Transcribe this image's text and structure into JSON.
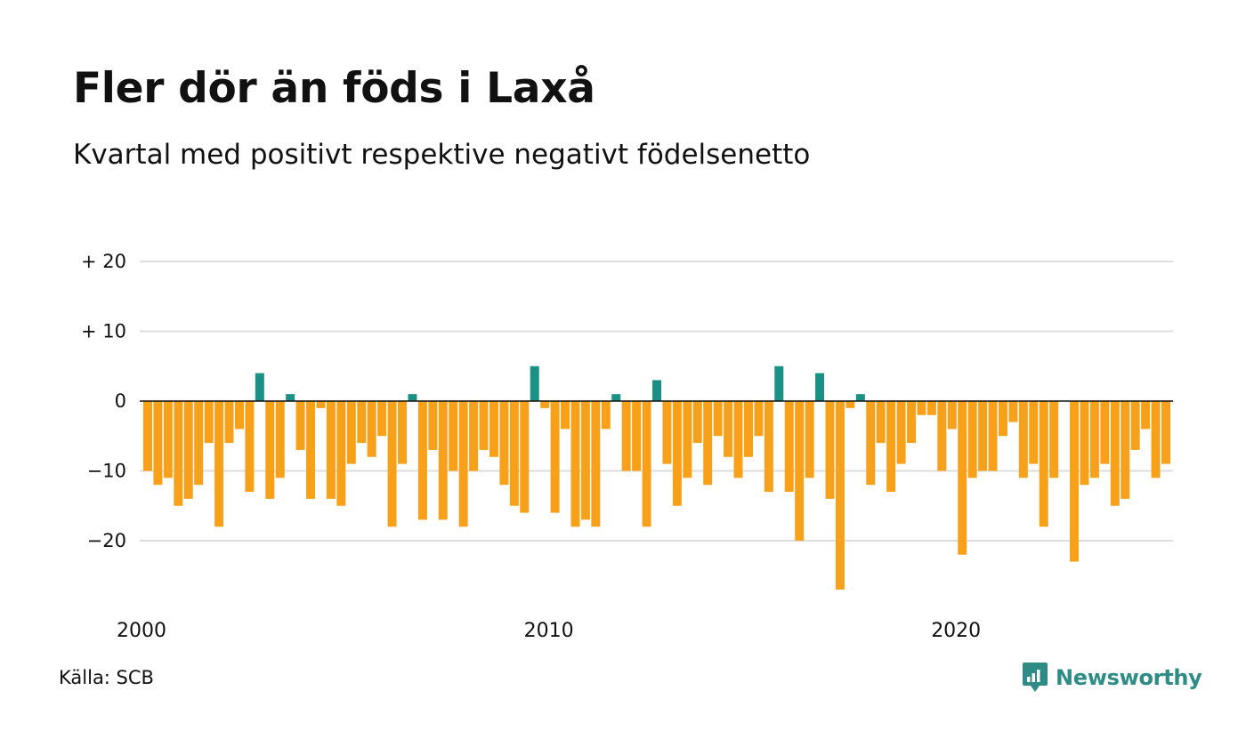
{
  "title": "Fler dör än föds i Laxå",
  "subtitle": "Kvartal med positivt respektive negativt födelsenetto",
  "source": "Källa: SCB",
  "logo_text": "Newsworthy",
  "colors": {
    "positive": "#1a9184",
    "negative": "#f7a11a",
    "grid": "#dddddd",
    "zero": "#111111",
    "logo": "#2e8b85"
  },
  "chart_data": {
    "type": "bar",
    "x_start": "2000 Q1",
    "x_ticks": [
      {
        "label": "2000",
        "index": 0
      },
      {
        "label": "2010",
        "index": 40
      },
      {
        "label": "2020",
        "index": 80
      }
    ],
    "y_ticks": [
      {
        "value": 20,
        "label": "+ 20"
      },
      {
        "value": 10,
        "label": "+ 10"
      },
      {
        "value": 0,
        "label": "0"
      },
      {
        "value": -10,
        "label": "−10"
      },
      {
        "value": -20,
        "label": "−20"
      }
    ],
    "ylim": [
      -28,
      20
    ],
    "grid": true,
    "values": [
      -10,
      -12,
      -11,
      -15,
      -14,
      -12,
      -6,
      -18,
      -6,
      -4,
      -13,
      4,
      -14,
      -11,
      1,
      -7,
      -14,
      -1,
      -14,
      -15,
      -9,
      -6,
      -8,
      -5,
      -18,
      -9,
      1,
      -17,
      -7,
      -17,
      -10,
      -18,
      -10,
      -7,
      -8,
      -12,
      -15,
      -16,
      5,
      -1,
      -16,
      -4,
      -18,
      -17,
      -18,
      -4,
      1,
      -10,
      -10,
      -18,
      3,
      -9,
      -15,
      -11,
      -6,
      -12,
      -5,
      -8,
      -11,
      -8,
      -5,
      -13,
      5,
      -13,
      -20,
      -11,
      4,
      -14,
      -27,
      -1,
      1,
      -12,
      -6,
      -13,
      -9,
      -6,
      -2,
      -2,
      -10,
      -4,
      -22,
      -11,
      -10,
      -10,
      -5,
      -3,
      -11,
      -9,
      -18,
      -11,
      0,
      -23,
      -12,
      -11,
      -9,
      -15,
      -14,
      -7,
      -4,
      -11,
      -9
    ]
  }
}
